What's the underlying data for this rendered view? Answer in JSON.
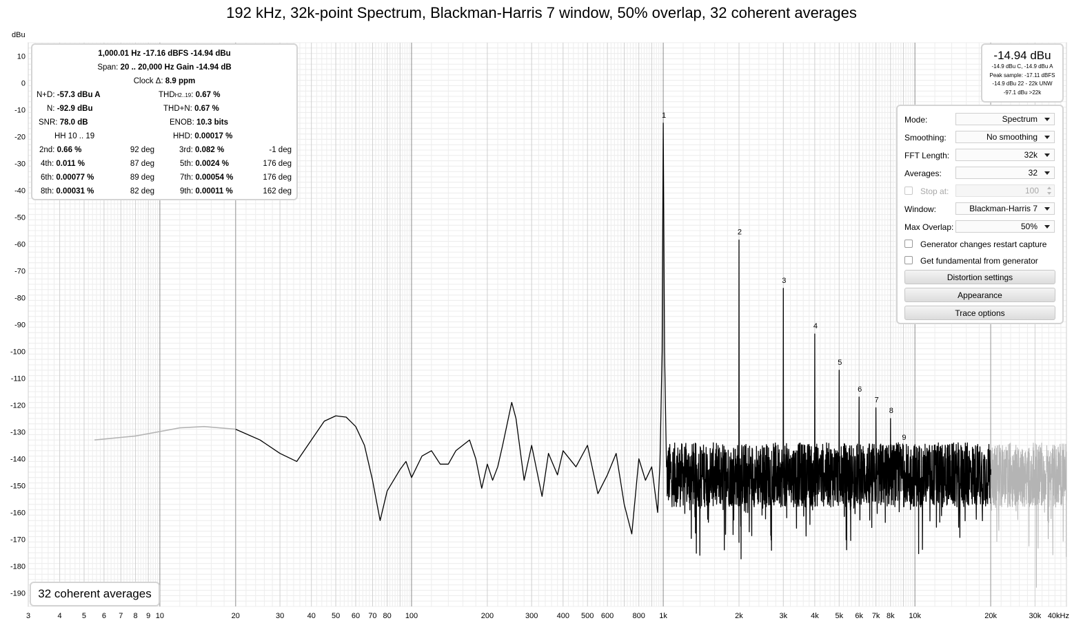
{
  "title": "192 kHz, 32k-point Spectrum, Blackman-Harris 7 window, 50% overlap, 32 coherent averages",
  "chart_data": {
    "type": "line",
    "title": "192 kHz, 32k-point Spectrum, Blackman-Harris 7 window, 50% overlap, 32 coherent averages",
    "ylabel": "dBu",
    "xscale": "log",
    "xlim": [
      3,
      40000
    ],
    "ylim": [
      -195,
      15
    ],
    "y_ticks": [
      10,
      0,
      -10,
      -20,
      -30,
      -40,
      -50,
      -60,
      -70,
      -80,
      -90,
      -100,
      -110,
      -120,
      -130,
      -140,
      -150,
      -160,
      -170,
      -180,
      -190
    ],
    "y_tick_labels": [
      "10",
      "0",
      "-10",
      "-20",
      "-30",
      "-40",
      "-50",
      "-60",
      "-70",
      "-80",
      "-90",
      "-100",
      "-110",
      "-120",
      "-130",
      "-140",
      "-150",
      "-160",
      "-170",
      "-180",
      "-190"
    ],
    "x_ticks": [
      3,
      4,
      5,
      6,
      7,
      8,
      9,
      10,
      20,
      30,
      40,
      50,
      60,
      70,
      80,
      100,
      200,
      300,
      400,
      500,
      600,
      800,
      1000,
      2000,
      3000,
      4000,
      5000,
      6000,
      7000,
      8000,
      10000,
      20000,
      30000,
      40000
    ],
    "x_tick_labels": [
      "3",
      "4",
      "5",
      "6",
      "7",
      "8",
      "9",
      "10",
      "20",
      "30",
      "40",
      "50",
      "60",
      "70",
      "80",
      "100",
      "200",
      "300",
      "400",
      "500",
      "600",
      "800",
      "1k",
      "2k",
      "3k",
      "4k",
      "5k",
      "6k",
      "7k",
      "8k",
      "10k",
      "20k",
      "30k",
      "40kHz"
    ],
    "grid": true,
    "span_hz": [
      20,
      20000
    ],
    "colors": {
      "in_span": "#000000",
      "out_of_span": "#b4b4b4"
    },
    "harmonic_peaks": [
      {
        "label": "1",
        "freq": 1000,
        "dbu": -14.94
      },
      {
        "label": "2",
        "freq": 2000,
        "dbu": -58.5
      },
      {
        "label": "3",
        "freq": 3000,
        "dbu": -76.5
      },
      {
        "label": "4",
        "freq": 4000,
        "dbu": -93.5
      },
      {
        "label": "5",
        "freq": 5000,
        "dbu": -107
      },
      {
        "label": "6",
        "freq": 6000,
        "dbu": -117
      },
      {
        "label": "7",
        "freq": 7000,
        "dbu": -121
      },
      {
        "label": "8",
        "freq": 8000,
        "dbu": -125
      },
      {
        "label": "9",
        "freq": 9000,
        "dbu": -135
      }
    ],
    "noise_floor_points": [
      [
        5.5,
        -133
      ],
      [
        8,
        -131.5
      ],
      [
        12,
        -128.5
      ],
      [
        15,
        -128
      ],
      [
        20,
        -129
      ],
      [
        25,
        -133
      ],
      [
        30,
        -138
      ],
      [
        35,
        -141
      ],
      [
        40,
        -133
      ],
      [
        45,
        -126
      ],
      [
        50,
        -124
      ],
      [
        55,
        -124.5
      ],
      [
        60,
        -128
      ],
      [
        65,
        -135
      ],
      [
        70,
        -148
      ],
      [
        75,
        -163
      ],
      [
        80,
        -152
      ],
      [
        90,
        -144
      ],
      [
        95,
        -141
      ],
      [
        100,
        -147
      ],
      [
        110,
        -139
      ],
      [
        120,
        -137
      ],
      [
        130,
        -142
      ],
      [
        140,
        -142
      ],
      [
        150,
        -137
      ],
      [
        170,
        -133
      ],
      [
        180,
        -140
      ],
      [
        190,
        -151
      ],
      [
        200,
        -142
      ],
      [
        210,
        -148
      ],
      [
        220,
        -143
      ],
      [
        230,
        -135
      ],
      [
        250,
        -119
      ],
      [
        260,
        -125
      ],
      [
        280,
        -148
      ],
      [
        300,
        -135
      ],
      [
        330,
        -154
      ],
      [
        350,
        -138
      ],
      [
        380,
        -146
      ],
      [
        400,
        -137
      ],
      [
        450,
        -143
      ],
      [
        500,
        -135
      ],
      [
        550,
        -153
      ],
      [
        600,
        -146
      ],
      [
        650,
        -138
      ],
      [
        700,
        -157
      ],
      [
        750,
        -168
      ],
      [
        800,
        -140
      ],
      [
        850,
        -148
      ],
      [
        900,
        -143
      ],
      [
        950,
        -160
      ],
      [
        970,
        -142
      ]
    ],
    "noise_spread_db": [
      -146,
      12
    ]
  },
  "readout": {
    "line1": "1,000.01 Hz  -17.16 dBFS  -14.94 dBu",
    "line2_label": "Span:",
    "line2_value": "20 .. 20,000 Hz   Gain -14.94 dB",
    "line3_label": "Clock Δ:",
    "line3_value": "8.9 ppm",
    "nd_label": "N+D:",
    "nd_value": "-57.3 dBu A",
    "thd_label": "THD",
    "thd_sub": "H2..19",
    "thd_colon": ":",
    "thd_value": "0.67 %",
    "n_label": "N:",
    "n_value": "-92.9 dBu",
    "thdn_label": "THD+N:",
    "thdn_value": "0.67 %",
    "snr_label": "SNR:",
    "snr_value": "78.0 dB",
    "enob_label": "ENOB:",
    "enob_value": "10.3 bits",
    "hh_label": "HH 10 .. 19",
    "hhd_label": "HHD:",
    "hhd_value": "0.00017 %",
    "harmonics": [
      {
        "l1": "2nd:",
        "v1": "0.66 %",
        "p1": "92 deg",
        "l2": "3rd:",
        "v2": "0.082 %",
        "p2": "-1 deg"
      },
      {
        "l1": "4th:",
        "v1": "0.011 %",
        "p1": "87 deg",
        "l2": "5th:",
        "v2": "0.0024 %",
        "p2": "176 deg"
      },
      {
        "l1": "6th:",
        "v1": "0.00077 %",
        "p1": "89 deg",
        "l2": "7th:",
        "v2": "0.00054 %",
        "p2": "176 deg"
      },
      {
        "l1": "8th:",
        "v1": "0.00031 %",
        "p1": "82 deg",
        "l2": "9th:",
        "v2": "0.00011 %",
        "p2": "162 deg"
      }
    ]
  },
  "level": {
    "main": "-14.94 dBu",
    "lines": [
      "-14.9 dBu C, -14.9 dBu A",
      "Peak sample: -17.11 dBFS",
      "-14.9 dBu 22 - 22k UNW",
      "-97.1 dBu >22k"
    ]
  },
  "controls": {
    "mode_label": "Mode:",
    "mode_value": "Spectrum",
    "smoothing_label": "Smoothing:",
    "smoothing_value": "No smoothing",
    "fft_label": "FFT Length:",
    "fft_value": "32k",
    "averages_label": "Averages:",
    "averages_value": "32",
    "stop_label": "Stop at:",
    "stop_value": "100",
    "window_label": "Window:",
    "window_value": "Blackman-Harris 7",
    "overlap_label": "Max Overlap:",
    "overlap_value": "50%",
    "gen_restart_label": "Generator changes restart capture",
    "fundamental_label": "Get fundamental from generator",
    "distortion_button": "Distortion settings",
    "appearance_button": "Appearance",
    "trace_button": "Trace options"
  },
  "averages_badge": "32 coherent averages"
}
